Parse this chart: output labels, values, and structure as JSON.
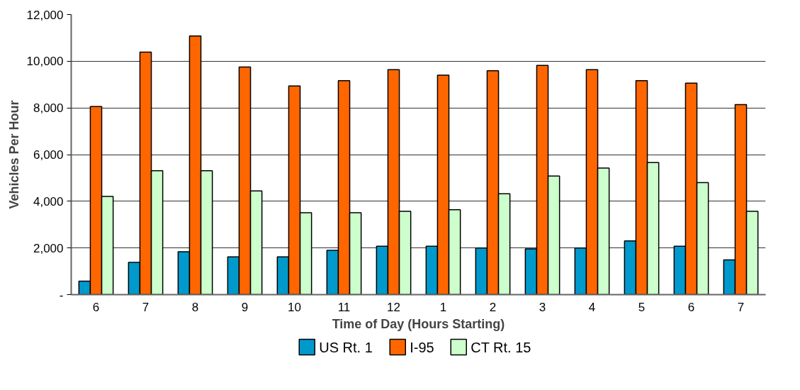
{
  "chart_data": {
    "type": "bar",
    "xlabel": "Time of Day (Hours Starting)",
    "ylabel": "Vehicles Per Hour",
    "categories": [
      "6",
      "7",
      "8",
      "9",
      "10",
      "11",
      "12",
      "1",
      "2",
      "3",
      "4",
      "5",
      "6",
      "7"
    ],
    "series": [
      {
        "name": "US Rt. 1",
        "color": "#0099cc",
        "values": [
          580,
          1380,
          1840,
          1620,
          1620,
          1900,
          2070,
          2070,
          2000,
          1960,
          2000,
          2300,
          2070,
          1490
        ]
      },
      {
        "name": "I-95",
        "color": "#ff6600",
        "values": [
          8060,
          10390,
          11080,
          9750,
          8940,
          9170,
          9640,
          9400,
          9590,
          9820,
          9640,
          9170,
          9060,
          8140
        ]
      },
      {
        "name": "CT Rt. 15",
        "color": "#ccffcc",
        "values": [
          4210,
          5310,
          5310,
          4440,
          3510,
          3510,
          3570,
          3640,
          4320,
          5080,
          5420,
          5660,
          4800,
          3570
        ]
      }
    ],
    "ylim": [
      0,
      12000
    ],
    "yticks": [
      {
        "value": 0,
        "label": "-"
      },
      {
        "value": 2000,
        "label": "2,000"
      },
      {
        "value": 4000,
        "label": "4,000"
      },
      {
        "value": 6000,
        "label": "6,000"
      },
      {
        "value": 8000,
        "label": "8,000"
      },
      {
        "value": 10000,
        "label": "10,000"
      },
      {
        "value": 12000,
        "label": "12,000"
      }
    ],
    "grid": "y",
    "legend": "bottom"
  }
}
